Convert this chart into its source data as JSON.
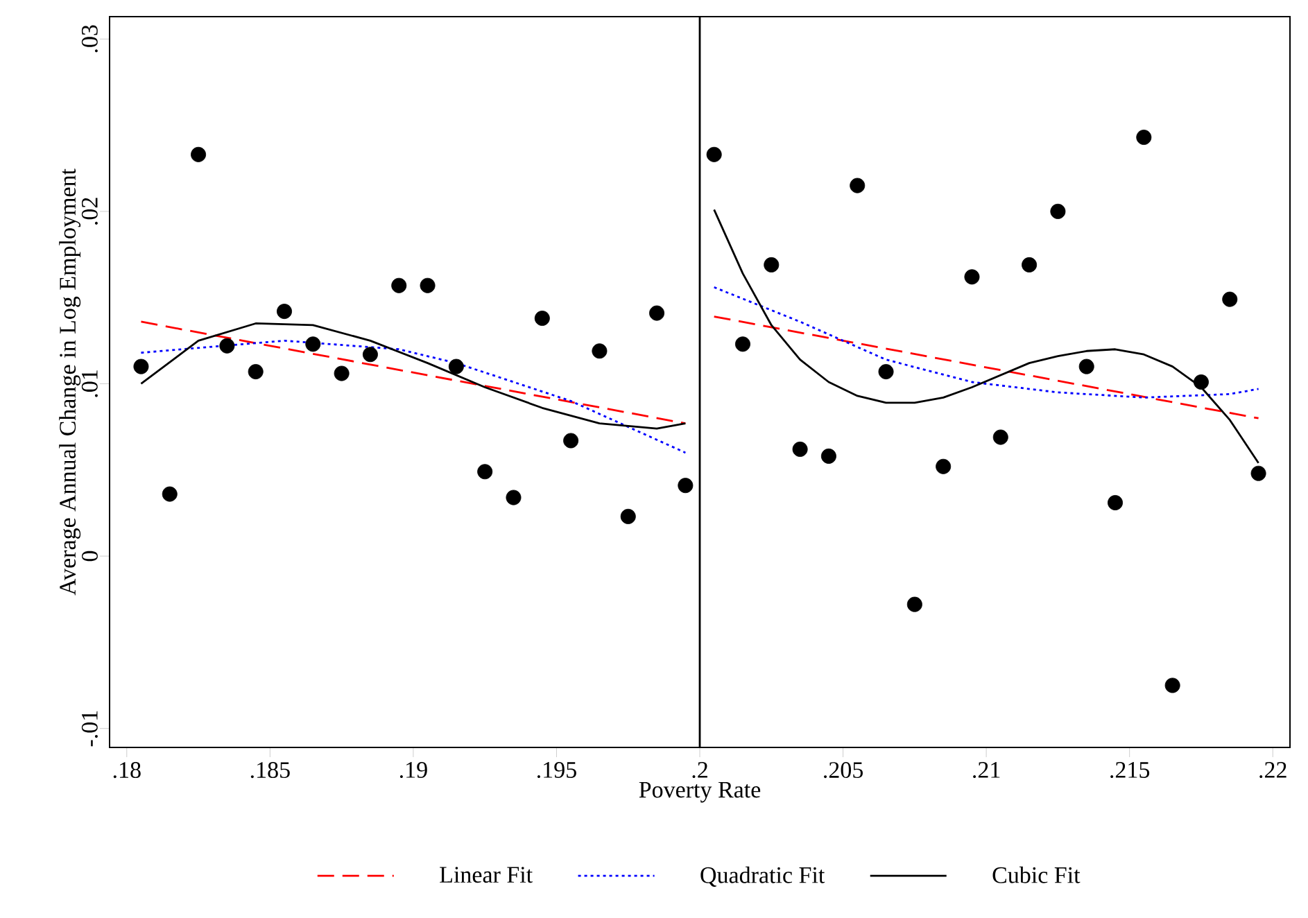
{
  "chart_data": {
    "type": "scatter",
    "xlabel": "Poverty Rate",
    "ylabel": "Average Annual Change in Log Employment",
    "xlim": [
      0.1794,
      0.2206
    ],
    "ylim": [
      -0.0111,
      0.0313
    ],
    "xticks": [
      {
        "value": 0.18,
        "label": ".18"
      },
      {
        "value": 0.185,
        "label": ".185"
      },
      {
        "value": 0.19,
        "label": ".19"
      },
      {
        "value": 0.195,
        "label": ".195"
      },
      {
        "value": 0.2,
        "label": ".2"
      },
      {
        "value": 0.205,
        "label": ".205"
      },
      {
        "value": 0.21,
        "label": ".21"
      },
      {
        "value": 0.215,
        "label": ".215"
      },
      {
        "value": 0.22,
        "label": ".22"
      }
    ],
    "yticks": [
      {
        "value": -0.01,
        "label": "-.01"
      },
      0,
      {
        "value": 0.01,
        "label": ".01"
      },
      {
        "value": 0.02,
        "label": ".02"
      },
      {
        "value": 0.03,
        "label": ".03"
      }
    ],
    "legend": "bottom",
    "ref_lines": [
      {
        "axis": "x",
        "value": 0.2,
        "color": "#000000"
      }
    ],
    "series": [
      {
        "color": "#000000",
        "marker": "circle",
        "x": [
          0.1805,
          0.1815,
          0.1825,
          0.1835,
          0.1845,
          0.1855,
          0.1865,
          0.1875,
          0.1885,
          0.1895,
          0.1905,
          0.1915,
          0.1925,
          0.1935,
          0.1945,
          0.1955,
          0.1965,
          0.1975,
          0.1985,
          0.1995,
          0.2005,
          0.2015,
          0.2025,
          0.2035,
          0.2045,
          0.2055,
          0.2065,
          0.2075,
          0.2085,
          0.2095,
          0.2105,
          0.2115,
          0.2125,
          0.2135,
          0.2145,
          0.2155,
          0.2165,
          0.2175,
          0.2185,
          0.2195
        ],
        "values": [
          0.011,
          0.0036,
          0.0233,
          0.0122,
          0.0107,
          0.0142,
          0.0123,
          0.0106,
          0.0117,
          0.0157,
          0.0157,
          0.011,
          0.0049,
          0.0034,
          0.0138,
          0.0067,
          0.0119,
          0.0023,
          0.0141,
          0.0041,
          0.0233,
          0.0123,
          0.0169,
          0.0062,
          0.0058,
          0.0215,
          0.0107,
          -0.0028,
          0.0052,
          0.0162,
          0.0069,
          0.0169,
          0.02,
          0.011,
          0.0031,
          0.0243,
          -0.0075,
          0.0101,
          0.0149,
          0.0048
        ]
      },
      {
        "type": "line",
        "name": "Linear Fit",
        "color": "#ff0000",
        "line_style": "dashed",
        "x": [
          0.1805,
          0.1995,
          0.2,
          0.2005,
          0.2195
        ],
        "values": [
          0.0136,
          0.0077,
          null,
          0.0139,
          0.008
        ]
      },
      {
        "type": "line",
        "name": "Quadratic Fit",
        "color": "#0000ff",
        "line_style": "dotted",
        "x": [
          0.1805,
          0.1855,
          0.1895,
          0.1915,
          0.1955,
          0.1995,
          0.2,
          0.2005,
          0.2035,
          0.2065,
          0.2095,
          0.2125,
          0.2155,
          0.2185,
          0.2195
        ],
        "values": [
          0.0118,
          0.0125,
          0.012,
          0.0112,
          0.009,
          0.006,
          null,
          0.0156,
          0.0136,
          0.0114,
          0.0101,
          0.0095,
          0.0092,
          0.0094,
          0.0097
        ]
      },
      {
        "type": "line",
        "name": "Cubic Fit",
        "color": "#000000",
        "line_style": "solid",
        "x": [
          0.1805,
          0.1825,
          0.1845,
          0.1865,
          0.1885,
          0.1905,
          0.1925,
          0.1945,
          0.1965,
          0.1985,
          0.1995,
          0.2,
          0.2005,
          0.2015,
          0.2025,
          0.2035,
          0.2045,
          0.2055,
          0.2065,
          0.2075,
          0.2085,
          0.2095,
          0.2105,
          0.2115,
          0.2125,
          0.2135,
          0.2145,
          0.2155,
          0.2165,
          0.2175,
          0.2185,
          0.2195
        ],
        "values": [
          0.01,
          0.0125,
          0.0135,
          0.0134,
          0.0125,
          0.0112,
          0.0098,
          0.0086,
          0.0077,
          0.0074,
          0.0077,
          null,
          0.0201,
          0.0164,
          0.0134,
          0.0114,
          0.0101,
          0.0093,
          0.0089,
          0.0089,
          0.0092,
          0.0098,
          0.0105,
          0.0112,
          0.0116,
          0.0119,
          0.012,
          0.0117,
          0.011,
          0.0098,
          0.0079,
          0.0054
        ]
      }
    ]
  }
}
